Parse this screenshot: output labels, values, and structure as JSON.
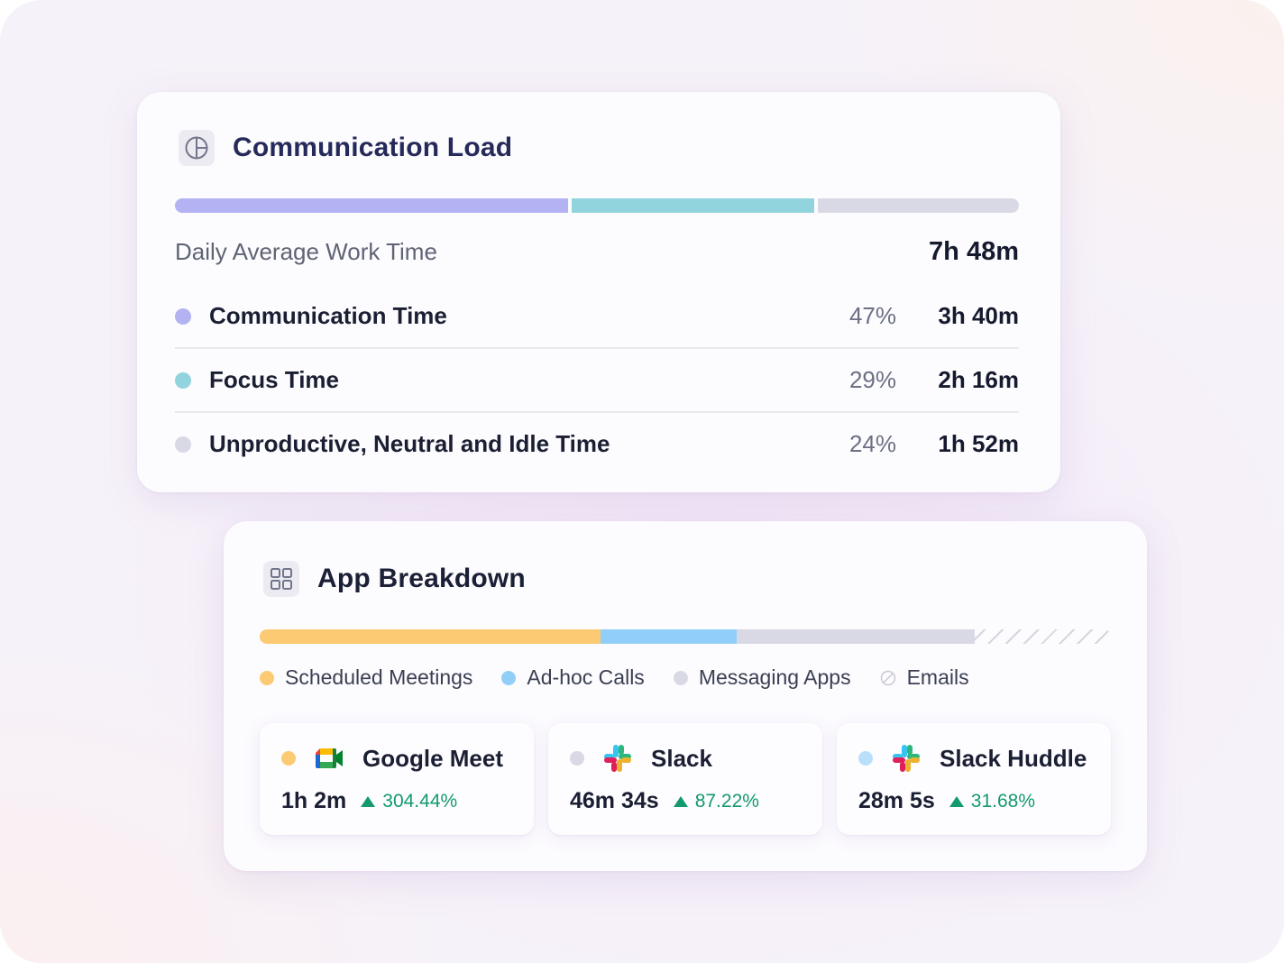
{
  "communication_load": {
    "title": "Communication Load",
    "icon": "pie-chart-icon",
    "daily_average_label": "Daily Average Work Time",
    "daily_average_value": "7h 48m",
    "rows": [
      {
        "label": "Communication Time",
        "pct": "47%",
        "duration": "3h 40m",
        "color": "#b3b3f3",
        "share": 0.47
      },
      {
        "label": "Focus Time",
        "pct": "29%",
        "duration": "2h 16m",
        "color": "#92d4dd",
        "share": 0.29
      },
      {
        "label": "Unproductive, Neutral and Idle Time",
        "pct": "24%",
        "duration": "1h 52m",
        "color": "#d9d9e5",
        "share": 0.24
      }
    ]
  },
  "app_breakdown": {
    "title": "App Breakdown",
    "icon": "grid-icon",
    "legend": [
      {
        "label": "Scheduled Meetings",
        "color": "#fcca73"
      },
      {
        "label": "Ad-hoc Calls",
        "color": "#92cff8"
      },
      {
        "label": "Messaging Apps",
        "color": "#d9d9e5"
      },
      {
        "label": "Emails",
        "color": "#d6d6e0"
      }
    ],
    "bar_shares": {
      "scheduled_meetings": 0.4,
      "adhoc_calls": 0.16,
      "messaging_apps": 0.28,
      "emails": 0.16
    },
    "apps": [
      {
        "name": "Google Meet",
        "duration": "1h 2m",
        "change": "304.44%",
        "dot_color": "#fcca73",
        "icon": "google-meet-icon"
      },
      {
        "name": "Slack",
        "duration": "46m 34s",
        "change": "87.22%",
        "dot_color": "#d9d9e5",
        "icon": "slack-icon"
      },
      {
        "name": "Slack Huddle",
        "duration": "28m 5s",
        "change": "31.68%",
        "dot_color": "#b9e0fb",
        "icon": "slack-icon"
      }
    ]
  }
}
